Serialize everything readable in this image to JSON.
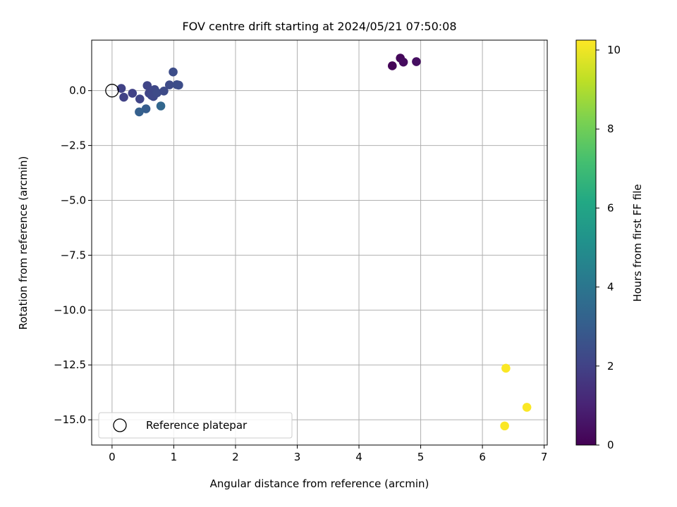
{
  "chart_data": {
    "type": "scatter",
    "title": "FOV centre drift starting at 2024/05/21 07:50:08",
    "xlabel": "Angular distance from reference (arcmin)",
    "ylabel": "Rotation from reference (arcmin)",
    "xlim": [
      -0.33,
      7.05
    ],
    "ylim": [
      -16.15,
      2.3
    ],
    "x_ticks": [
      0,
      1,
      2,
      3,
      4,
      5,
      6,
      7
    ],
    "y_ticks": [
      0.0,
      -2.5,
      -5.0,
      -7.5,
      -10.0,
      -12.5,
      -15.0
    ],
    "grid": true,
    "legend": {
      "position": "lower-left",
      "entries": [
        "Reference platepar"
      ]
    },
    "reference_point": {
      "x": 0,
      "y": 0
    },
    "colorbar": {
      "label": "Hours from first FF file",
      "colormap": "viridis",
      "range": [
        0,
        10.25
      ],
      "ticks": [
        0,
        2,
        4,
        6,
        8,
        10
      ]
    },
    "points": [
      {
        "x": 4.54,
        "y": 1.13,
        "hours": 0.1
      },
      {
        "x": 4.67,
        "y": 1.48,
        "hours": 0.2
      },
      {
        "x": 4.72,
        "y": 1.3,
        "hours": 0.3
      },
      {
        "x": 4.93,
        "y": 1.32,
        "hours": 0.4
      },
      {
        "x": 0.15,
        "y": 0.1,
        "hours": 2.0
      },
      {
        "x": 0.19,
        "y": -0.3,
        "hours": 2.0
      },
      {
        "x": 0.33,
        "y": -0.12,
        "hours": 2.0
      },
      {
        "x": 0.45,
        "y": -0.38,
        "hours": 2.1
      },
      {
        "x": 0.57,
        "y": 0.23,
        "hours": 2.1
      },
      {
        "x": 0.6,
        "y": -0.12,
        "hours": 2.1
      },
      {
        "x": 0.64,
        "y": -0.22,
        "hours": 2.2
      },
      {
        "x": 0.67,
        "y": -0.27,
        "hours": 2.2
      },
      {
        "x": 0.69,
        "y": 0.05,
        "hours": 2.2
      },
      {
        "x": 0.73,
        "y": -0.1,
        "hours": 2.3
      },
      {
        "x": 0.84,
        "y": -0.02,
        "hours": 2.3
      },
      {
        "x": 0.93,
        "y": 0.26,
        "hours": 2.3
      },
      {
        "x": 0.99,
        "y": 0.85,
        "hours": 2.4
      },
      {
        "x": 1.05,
        "y": 0.27,
        "hours": 2.4
      },
      {
        "x": 1.08,
        "y": 0.25,
        "hours": 2.4
      },
      {
        "x": 0.55,
        "y": -0.83,
        "hours": 3.0
      },
      {
        "x": 0.44,
        "y": -0.97,
        "hours": 3.1
      },
      {
        "x": 0.79,
        "y": -0.7,
        "hours": 3.4
      },
      {
        "x": 6.38,
        "y": -12.65,
        "hours": 10.2
      },
      {
        "x": 6.72,
        "y": -14.43,
        "hours": 10.2
      },
      {
        "x": 6.36,
        "y": -15.28,
        "hours": 10.2
      }
    ]
  }
}
